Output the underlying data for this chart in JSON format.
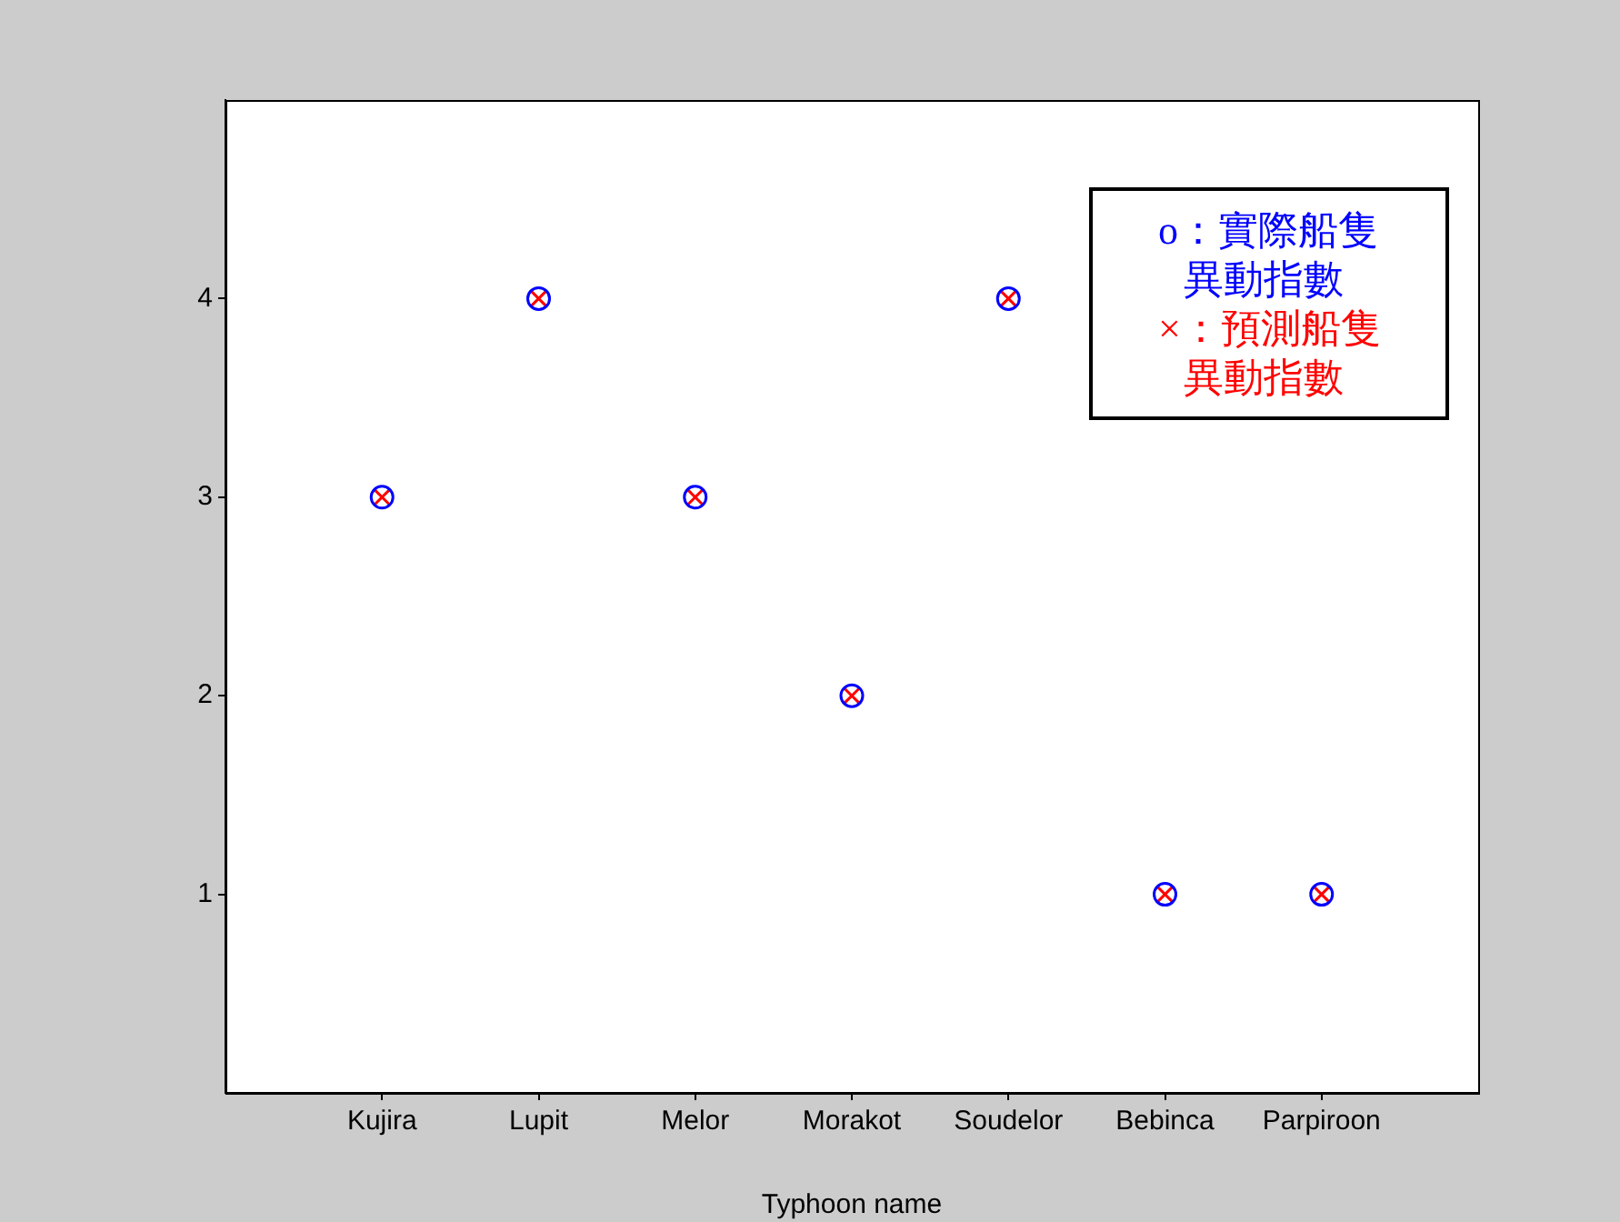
{
  "chart_data": {
    "type": "scatter",
    "xlabel": "Typhoon name",
    "categories": [
      "Kujira",
      "Lupit",
      "Melor",
      "Morakot",
      "Soudelor",
      "Bebinca",
      "Parpiroon"
    ],
    "series": [
      {
        "name": "o：實際船隻異動指數",
        "color": "#0000ff",
        "marker": "circle",
        "values": [
          3,
          4,
          3,
          2,
          4,
          1,
          1
        ]
      },
      {
        "name": "×：預測船隻異動指數",
        "color": "#ff0000",
        "marker": "cross",
        "values": [
          3,
          4,
          3,
          2,
          4,
          1,
          1
        ]
      }
    ],
    "ylim": [
      0,
      5
    ],
    "yticks": [
      1,
      2,
      3,
      4
    ],
    "grid": false,
    "legend": "top right"
  }
}
